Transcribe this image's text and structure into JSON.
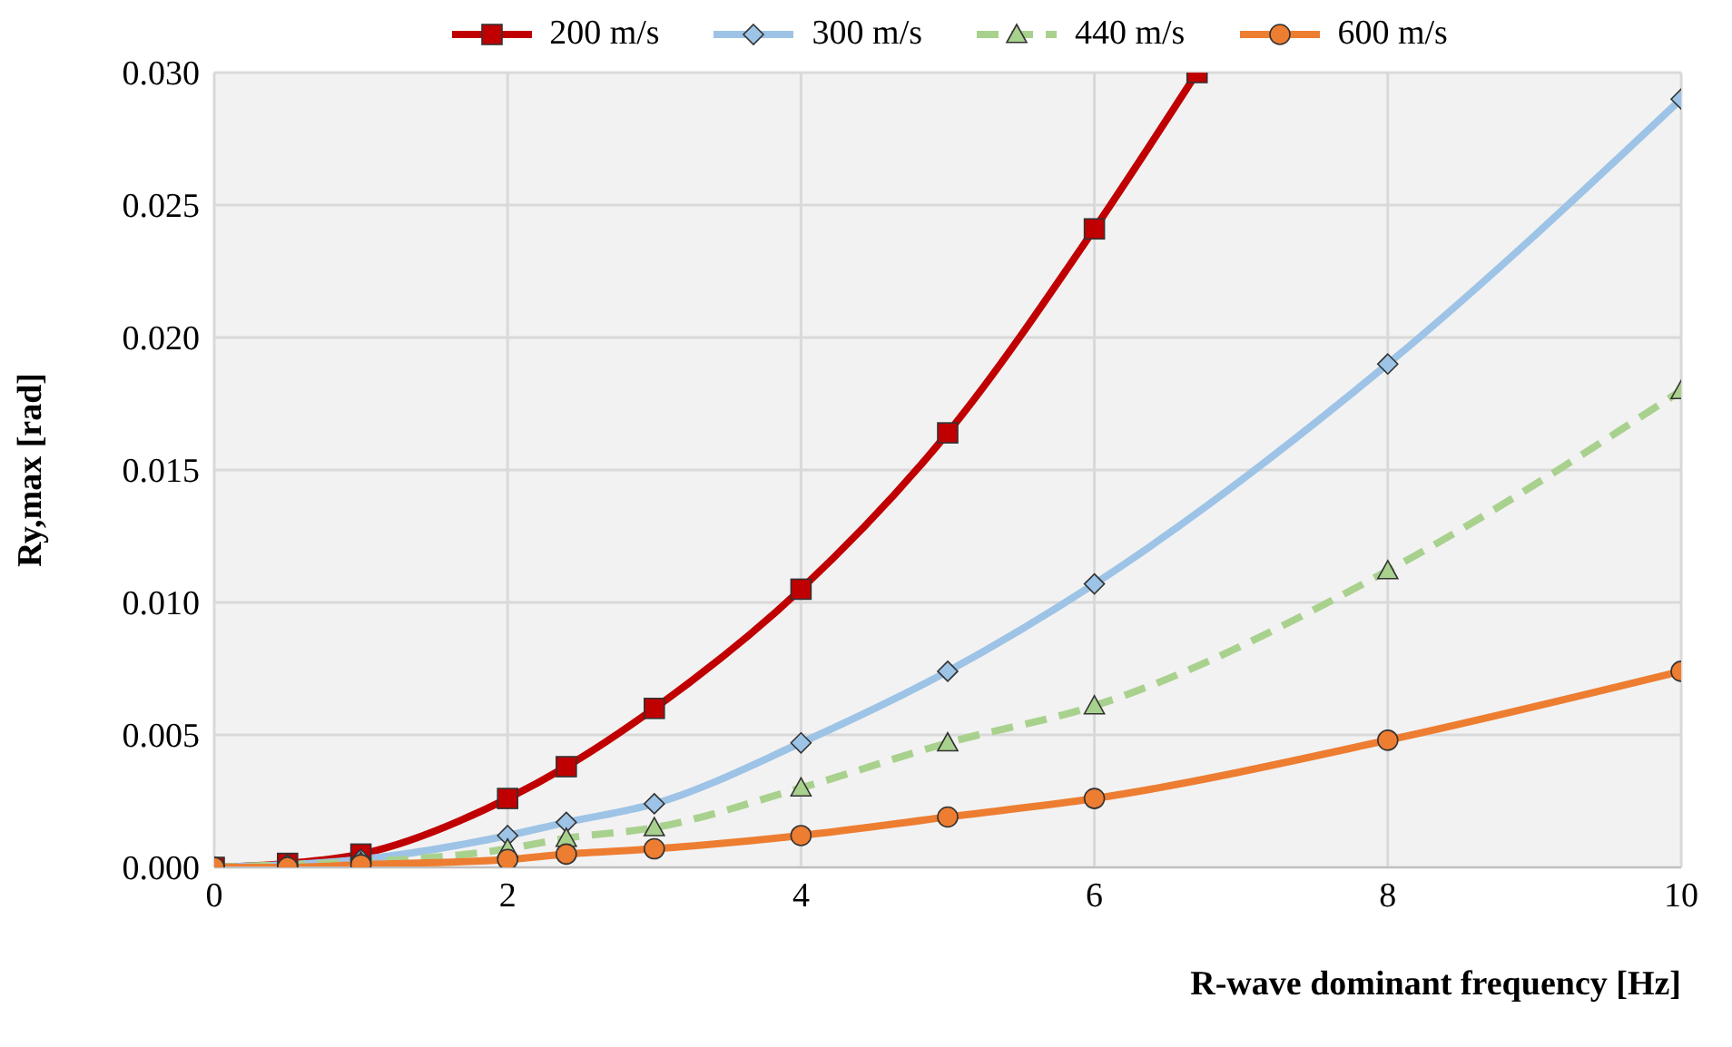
{
  "chart_data": {
    "type": "line",
    "xlabel": "R-wave dominant frequency [Hz]",
    "ylabel": "Ry,max  [rad]",
    "xlim": [
      0,
      10
    ],
    "xticks": [
      0,
      2,
      4,
      6,
      8,
      10
    ],
    "ylim": [
      0,
      0.03
    ],
    "yticks": [
      {
        "value": 0,
        "label": "0.000"
      },
      {
        "value": 0.005,
        "label": "0.005"
      },
      {
        "value": 0.01,
        "label": "0.010"
      },
      {
        "value": 0.015,
        "label": "0.015"
      },
      {
        "value": 0.02,
        "label": "0.020"
      },
      {
        "value": 0.025,
        "label": "0.025"
      },
      {
        "value": 0.03,
        "label": "0.030"
      }
    ],
    "grid": true,
    "legend": "top",
    "series": [
      {
        "name": "200 m/s",
        "color": "#c00000",
        "marker": "square",
        "line_style": "solid",
        "x": [
          0,
          0.5,
          1,
          2,
          2.4,
          3,
          4,
          5,
          6,
          6.7
        ],
        "values": [
          0,
          0.00015,
          0.0005,
          0.0026,
          0.0038,
          0.006,
          0.0105,
          0.0164,
          0.0241,
          0.03
        ]
      },
      {
        "name": "300 m/s",
        "color": "#9dc3e6",
        "marker": "diamond",
        "line_style": "solid",
        "x": [
          0,
          0.5,
          1,
          2,
          2.4,
          3,
          4,
          5,
          6,
          8,
          10
        ],
        "values": [
          0,
          0.0001,
          0.0003,
          0.0012,
          0.0017,
          0.0024,
          0.0047,
          0.0074,
          0.0107,
          0.019,
          0.029
        ]
      },
      {
        "name": "440 m/s",
        "color": "#a9d18e",
        "marker": "triangle",
        "line_style": "dashed",
        "x": [
          0,
          0.5,
          1,
          2,
          2.4,
          3,
          4,
          5,
          6,
          8,
          10
        ],
        "values": [
          0,
          0.0001,
          0.0002,
          0.0007,
          0.0011,
          0.0015,
          0.003,
          0.0047,
          0.0061,
          0.0112,
          0.018
        ]
      },
      {
        "name": "600 m/s",
        "color": "#ed7d31",
        "marker": "circle",
        "line_style": "solid",
        "x": [
          0,
          0.5,
          1,
          2,
          2.4,
          3,
          4,
          5,
          6,
          8,
          10
        ],
        "values": [
          0,
          0,
          0.0001,
          0.0003,
          0.0005,
          0.0007,
          0.0012,
          0.0019,
          0.0026,
          0.0048,
          0.0074
        ]
      }
    ]
  }
}
